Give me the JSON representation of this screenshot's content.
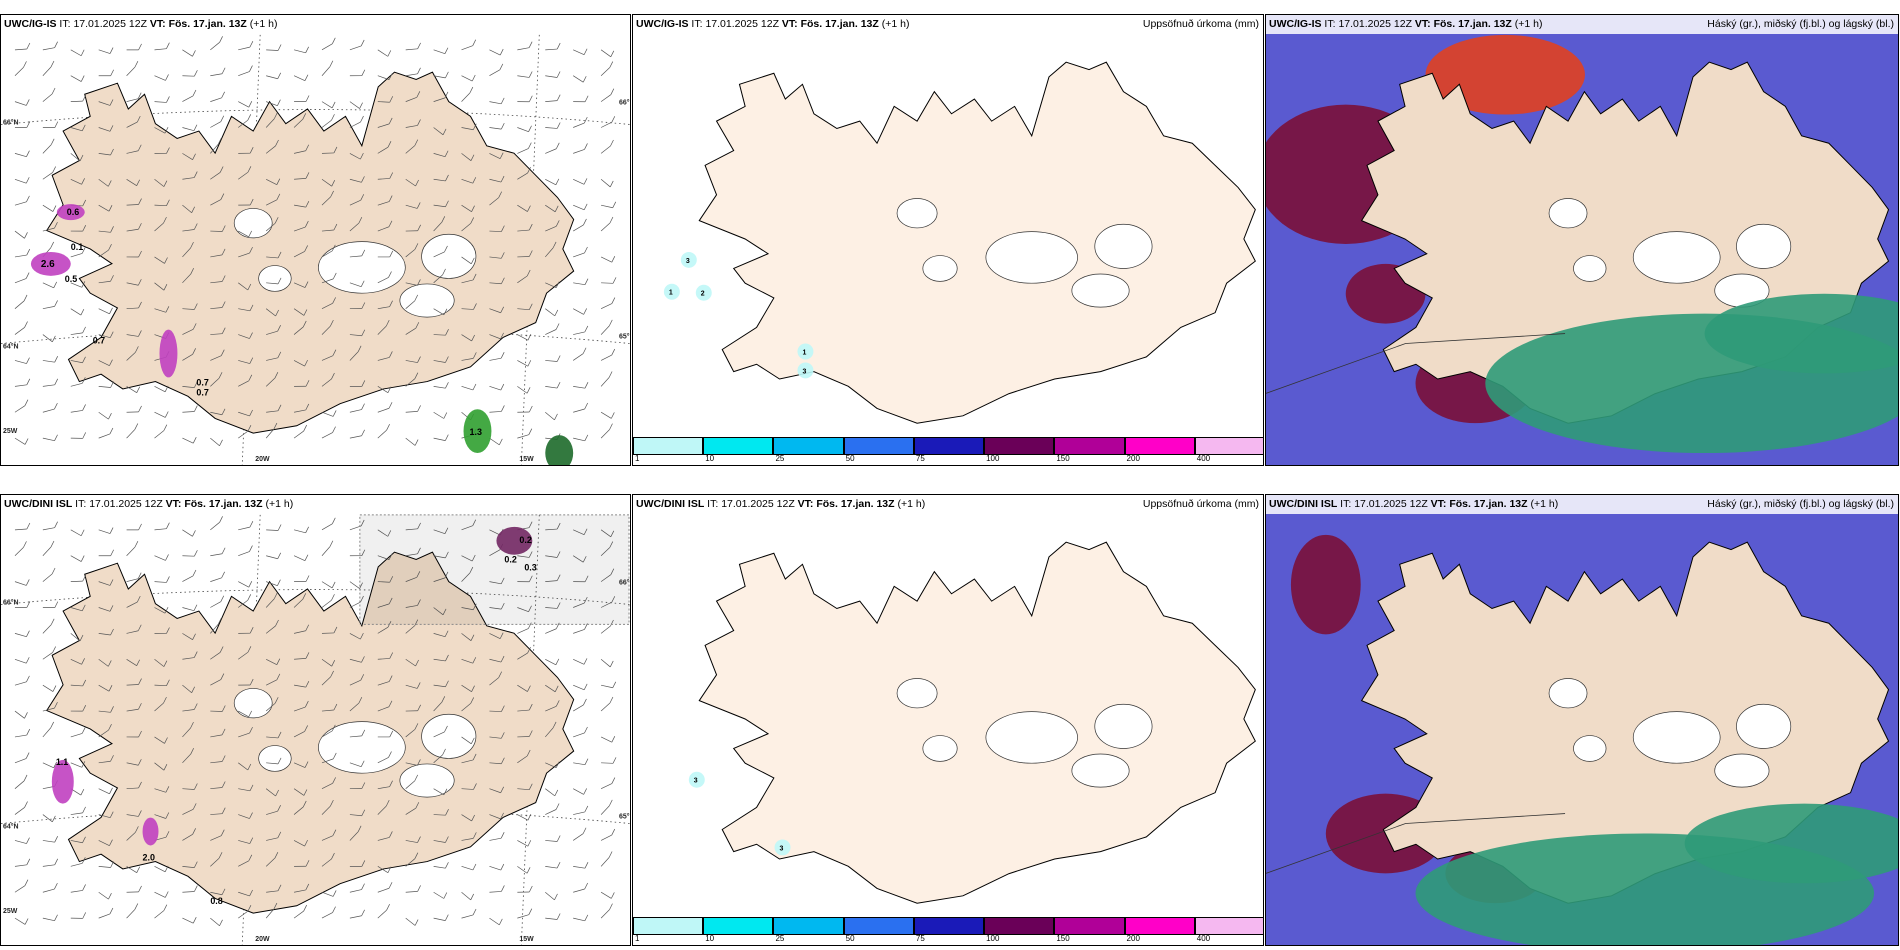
{
  "panels": [
    {
      "model": "UWC/IG-IS",
      "it_label": "IT:",
      "it_value": "17.01.2025 12Z",
      "vt_label": "VT:",
      "vt_value": "Fös. 17.jan. 13Z",
      "step": "(+1 h)",
      "right_title": "",
      "kind": "wind",
      "labels": [
        "66°N",
        "65°N",
        "64°N",
        "20W",
        "15W",
        "25W",
        "0.6",
        "2.6",
        "0.1",
        "0.5",
        "0.7",
        "0.7",
        "0.7",
        "1.3"
      ]
    },
    {
      "model": "UWC/IG-IS",
      "it_label": "IT:",
      "it_value": "17.01.2025 12Z",
      "vt_label": "VT:",
      "vt_value": "Fös. 17.jan. 13Z",
      "step": "(+1 h)",
      "right_title": "Uppsöfnuð úrkoma (mm)",
      "kind": "precip",
      "labels": [
        "3",
        "1",
        "2",
        "1",
        "3"
      ]
    },
    {
      "model": "UWC/IG-IS",
      "it_label": "IT:",
      "it_value": "17.01.2025 12Z",
      "vt_label": "VT:",
      "vt_value": "Fös. 17.jan. 13Z",
      "step": "(+1 h)",
      "right_title": "Háský (gr.), miðský (fj.bl.) og lágský (bl.)",
      "kind": "cloud",
      "labels": []
    },
    {
      "model": "UWC/DINI ISL",
      "it_label": "IT:",
      "it_value": "17.01.2025 12Z",
      "vt_label": "VT:",
      "vt_value": "Fös. 17.jan. 13Z",
      "step": "(+1 h)",
      "right_title": "",
      "kind": "wind",
      "labels": [
        "66°N",
        "65°N",
        "64°N",
        "20W",
        "15W",
        "25W",
        "0.2",
        "0.2",
        "0.3",
        "2.0",
        "0.8",
        "1.1"
      ]
    },
    {
      "model": "UWC/DINI ISL",
      "it_label": "IT:",
      "it_value": "17.01.2025 12Z",
      "vt_label": "VT:",
      "vt_value": "Fös. 17.jan. 13Z",
      "step": "(+1 h)",
      "right_title": "Uppsöfnuð úrkoma (mm)",
      "kind": "precip",
      "labels": [
        "3",
        "3"
      ]
    },
    {
      "model": "UWC/DINI ISL",
      "it_label": "IT:",
      "it_value": "17.01.2025 12Z",
      "vt_label": "VT:",
      "vt_value": "Fös. 17.jan. 13Z",
      "step": "(+1 h)",
      "right_title": "Háský (gr.), miðský (fj.bl.) og lágský (bl.)",
      "kind": "cloud",
      "labels": []
    }
  ],
  "precip_legend": {
    "values": [
      "1",
      "10",
      "25",
      "50",
      "75",
      "100",
      "150",
      "200",
      "400"
    ],
    "colors": [
      "#bff7f7",
      "#00e8f0",
      "#00b8f0",
      "#2a70f0",
      "#1a1ab8",
      "#6a0058",
      "#b00098",
      "#ff00c8",
      "#f5b8f0"
    ]
  },
  "colors": {
    "land": "#f0dcc8",
    "land_light": "#fdf0e4",
    "glacier": "#ffffff",
    "high_cloud": "#2f9a78",
    "mid_cloud": "#5a5ad0",
    "low_cloud": "#7a1038",
    "precip_purple": "#c040c0",
    "precip_green": "#30a030"
  }
}
